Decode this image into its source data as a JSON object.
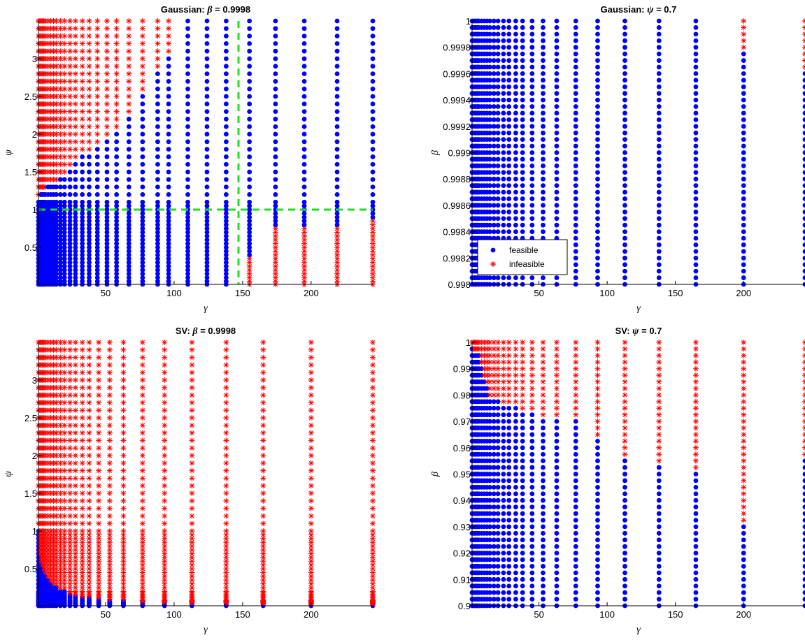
{
  "colors": {
    "feasible": "#0000ff",
    "infeasible": "#ff0000",
    "threshold": "#22dd22",
    "axis": "#000000"
  },
  "chart_data": [
    {
      "type": "scatter",
      "title_prefix": "Gaussian: ",
      "title_var": "β",
      "title_suffix": " = 0.9998",
      "xlabel": "γ",
      "ylabel": "ψ",
      "xlim": [
        1,
        245
      ],
      "ylim": [
        0.01,
        3.5
      ],
      "xticks": [
        "50",
        "100",
        "150",
        "200"
      ],
      "yticks": [
        "0.5",
        "1",
        "1.5",
        "2",
        "2.5",
        "3"
      ],
      "grid": false,
      "threshold_lines": {
        "x": 147,
        "y": 1.0
      },
      "x_grid_values": [
        1,
        2,
        3,
        4,
        5,
        6,
        8,
        10,
        12,
        14,
        17,
        20,
        24,
        28,
        33,
        38,
        44,
        51,
        58,
        67,
        77,
        88,
        96,
        110,
        124,
        138,
        155,
        174,
        195,
        219,
        245
      ],
      "y_grid_values": [
        0.01,
        0.05,
        0.1,
        0.15,
        0.2,
        0.25,
        0.3,
        0.35,
        0.4,
        0.45,
        0.5,
        0.55,
        0.6,
        0.65,
        0.7,
        0.75,
        0.8,
        0.85,
        0.9,
        0.95,
        1.0,
        1.05,
        1.1,
        1.2,
        1.3,
        1.4,
        1.5,
        1.6,
        1.7,
        1.8,
        1.9,
        2.0,
        2.1,
        2.2,
        2.3,
        2.4,
        2.5,
        2.6,
        2.7,
        2.8,
        2.9,
        3.0,
        3.1,
        3.2,
        3.3,
        3.4,
        3.5
      ],
      "infeasible_rule": "infeasible where psi >= 1.15 and gamma below the staircase boundary (about 2 at psi 1.2 rising to 110 at psi 3.5), and where gamma >= 155 with psi below 0.3 (gamma 155), 0.75 (gamma 174-219) or 0.85 (gamma 245)"
    },
    {
      "type": "scatter",
      "title_prefix": "Gaussian: ",
      "title_var": "ψ",
      "title_suffix": " = 0.7",
      "xlabel": "γ",
      "ylabel": "β",
      "xlim": [
        1,
        245
      ],
      "ylim": [
        0.998,
        1.0
      ],
      "xticks": [
        "50",
        "100",
        "150",
        "200"
      ],
      "yticks": [
        "0.998",
        "0.9982",
        "0.9984",
        "0.9986",
        "0.9988",
        "0.999",
        "0.9992",
        "0.9994",
        "0.9996",
        "0.9998",
        "1"
      ],
      "grid": false,
      "legend_position": "lower-left",
      "legend": [
        {
          "label": "feasible",
          "marker": "circle"
        },
        {
          "label": "infeasible",
          "marker": "asterisk"
        }
      ],
      "x_grid_values": [
        1,
        2,
        3,
        4,
        5,
        6,
        8,
        10,
        12,
        14,
        17,
        20,
        24,
        28,
        33,
        38,
        45,
        53,
        63,
        77,
        93,
        113,
        138,
        165,
        200,
        245
      ],
      "y_grid_values": "41 evenly spaced beta values from 0.998 to 1.0 (step 0.00005)",
      "infeasible_rule": "infeasible only at gamma 200 with beta >= 0.99978 and at gamma 245 with beta >= 0.99965; all other points feasible"
    },
    {
      "type": "scatter",
      "title_prefix": "SV: ",
      "title_var": "β",
      "title_suffix": " = 0.9998",
      "xlabel": "γ",
      "ylabel": "ψ",
      "xlim": [
        1,
        245
      ],
      "ylim": [
        0.01,
        3.5
      ],
      "xticks": [
        "50",
        "100",
        "150",
        "200"
      ],
      "yticks": [
        "0.5",
        "1",
        "1.5",
        "2",
        "2.5",
        "3"
      ],
      "grid": false,
      "x_grid_values": [
        1,
        2,
        3,
        4,
        5,
        6,
        8,
        10,
        12,
        14,
        17,
        20,
        24,
        28,
        33,
        38,
        45,
        53,
        63,
        77,
        93,
        113,
        138,
        165,
        200,
        245
      ],
      "y_grid_values": [
        0.01,
        0.02,
        0.03,
        0.04,
        0.05,
        0.06,
        0.07,
        0.08,
        0.1,
        0.12,
        0.14,
        0.16,
        0.18,
        0.2,
        0.25,
        0.3,
        0.35,
        0.4,
        0.45,
        0.5,
        0.55,
        0.6,
        0.65,
        0.7,
        0.75,
        0.8,
        0.85,
        0.9,
        0.95,
        1.0,
        1.1,
        1.2,
        1.3,
        1.4,
        1.5,
        1.6,
        1.7,
        1.8,
        1.9,
        2.0,
        2.1,
        2.2,
        2.3,
        2.4,
        2.5,
        2.6,
        2.7,
        2.8,
        2.9,
        3.0,
        3.1,
        3.2,
        3.3,
        3.4,
        3.5
      ],
      "infeasible_rule": "feasible only where psi <= 1.0 and gamma < 6*(1-psi)^2/psi (curved frontier near the origin); everything else infeasible"
    },
    {
      "type": "scatter",
      "title_prefix": "SV: ",
      "title_var": "ψ",
      "title_suffix": " = 0.7",
      "xlabel": "γ",
      "ylabel": "β",
      "xlim": [
        1,
        245
      ],
      "ylim": [
        0.9,
        1.0
      ],
      "xticks": [
        "50",
        "100",
        "150",
        "200"
      ],
      "yticks": [
        "0.9",
        "0.91",
        "0.92",
        "0.93",
        "0.94",
        "0.95",
        "0.96",
        "0.97",
        "0.98",
        "0.99",
        "1"
      ],
      "grid": false,
      "x_grid_values": [
        1,
        2,
        3,
        4,
        5,
        6,
        8,
        10,
        12,
        14,
        17,
        20,
        24,
        28,
        33,
        38,
        45,
        53,
        63,
        77,
        93,
        113,
        138,
        165,
        200,
        245
      ],
      "y_grid_values": "41 evenly spaced beta values from 0.9 to 1.0 (step 0.0025)",
      "infeasible_rule": "infeasible where beta exceeds a boundary falling from about 0.998 at gamma 1 to 0.932 at gamma 200 and 0.955 at gamma 245; below it feasible"
    }
  ]
}
